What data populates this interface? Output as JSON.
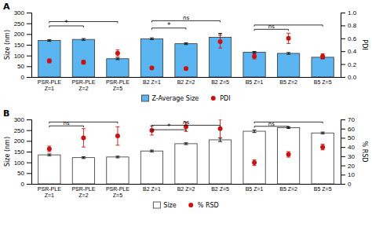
{
  "chart_data": [
    {
      "type": "bar",
      "title": "A",
      "categories": [
        "PSR-PLE\nZ=1",
        "PSR-PLE\nZ=2",
        "PSR-PLE\nZ=5",
        "B2 Z=1",
        "B2 Z=2",
        "B2 Z=5",
        "B5 Z=1",
        "B5 Z=2",
        "B5 Z=5"
      ],
      "ylabel": "Size (nm)",
      "y2label": "PDI",
      "ylim": [
        0,
        300
      ],
      "yticks": [
        0,
        50,
        100,
        150,
        200,
        250,
        300
      ],
      "y2lim": [
        0,
        1
      ],
      "y2ticks": [
        {
          "value": 0,
          "label": "0.0"
        },
        0.2,
        0.4,
        0.6,
        0.8,
        {
          "value": 1,
          "label": "1.0"
        }
      ],
      "legend": "bottom",
      "series": [
        {
          "name": "Z-Average Size",
          "type": "bar",
          "color": "#5bb5f0",
          "values": [
            170,
            175,
            85,
            178,
            155,
            185,
            115,
            110,
            92
          ],
          "errors": [
            4,
            4,
            4,
            4,
            4,
            18,
            4,
            4,
            6
          ]
        },
        {
          "name": "PDI",
          "type": "scatter",
          "axis": "y2",
          "color": "#cc1111",
          "marker": "circle",
          "values": [
            0.25,
            0.23,
            0.37,
            0.14,
            0.13,
            0.55,
            0.32,
            0.6,
            0.32
          ],
          "errors": [
            0.03,
            0.03,
            0.05,
            0.02,
            0.02,
            0.1,
            0.04,
            0.08,
            0.04
          ]
        }
      ],
      "annotations": [
        {
          "text": "*",
          "between": [
            "PSR-PLE\nZ=1",
            "PSR-PLE\nZ=2"
          ],
          "y": 238
        },
        {
          "between": [
            "PSR-PLE\nZ=1",
            "PSR-PLE\nZ=5"
          ],
          "y": 258
        },
        {
          "text": "*",
          "between": [
            "B2 Z=1",
            "B2 Z=2"
          ],
          "y": 228
        },
        {
          "text": "ns",
          "between": [
            "B2 Z=1",
            "B2 Z=5"
          ],
          "y": 262
        },
        {
          "text": "ns",
          "between": [
            "B5 Z=1",
            "B5 Z=2"
          ],
          "y": 222
        },
        {
          "between": [
            "B5 Z=1",
            "B5 Z=5"
          ],
          "y": 242
        }
      ]
    },
    {
      "type": "bar",
      "title": "B",
      "categories": [
        "PSR-PLE\nZ=1",
        "PSR-PLE\nZ=2",
        "PSR-PLE\nZ=5",
        "B2 Z=1",
        "B2 Z=2",
        "B2 Z=5",
        "B5 Z=1",
        "B5 Z=2",
        "B5 Z=5"
      ],
      "ylabel": "Size (nm)",
      "y2label": "% RSD",
      "ylim": [
        0,
        300
      ],
      "yticks": [
        0,
        50,
        100,
        150,
        200,
        250,
        300
      ],
      "y2lim": [
        0,
        70
      ],
      "y2ticks": [
        0,
        10,
        20,
        30,
        40,
        50,
        60,
        70
      ],
      "legend": "bottom",
      "series": [
        {
          "name": "Size",
          "type": "bar",
          "color": "white",
          "values": [
            135,
            122,
            125,
            153,
            187,
            205,
            245,
            262,
            237
          ],
          "errors": [
            4,
            4,
            4,
            4,
            4,
            8,
            6,
            4,
            4
          ]
        },
        {
          "name": "% RSD",
          "type": "scatter",
          "axis": "y2",
          "color": "#cc1111",
          "marker": "circle",
          "values": [
            38,
            50,
            52,
            58,
            62,
            60,
            23,
            32,
            40
          ],
          "errors": [
            3,
            10,
            10,
            5,
            5,
            10,
            3,
            3,
            3
          ]
        }
      ],
      "annotations": [
        {
          "text": "ns",
          "between": [
            "PSR-PLE\nZ=1",
            "PSR-PLE\nZ=2"
          ],
          "y": 270
        },
        {
          "between": [
            "PSR-PLE\nZ=1",
            "PSR-PLE\nZ=5"
          ],
          "y": 288
        },
        {
          "text": "*",
          "between": [
            "B2 Z=1",
            "B2 Z=2"
          ],
          "y": 252
        },
        {
          "text": "ns",
          "between": [
            "B2 Z=1",
            "B2 Z=5"
          ],
          "y": 273
        },
        {
          "text": "ns",
          "between": [
            "B5 Z=1",
            "B5 Z=2"
          ],
          "y": 268
        },
        {
          "between": [
            "B5 Z=1",
            "B5 Z=5"
          ],
          "y": 288
        }
      ]
    }
  ]
}
